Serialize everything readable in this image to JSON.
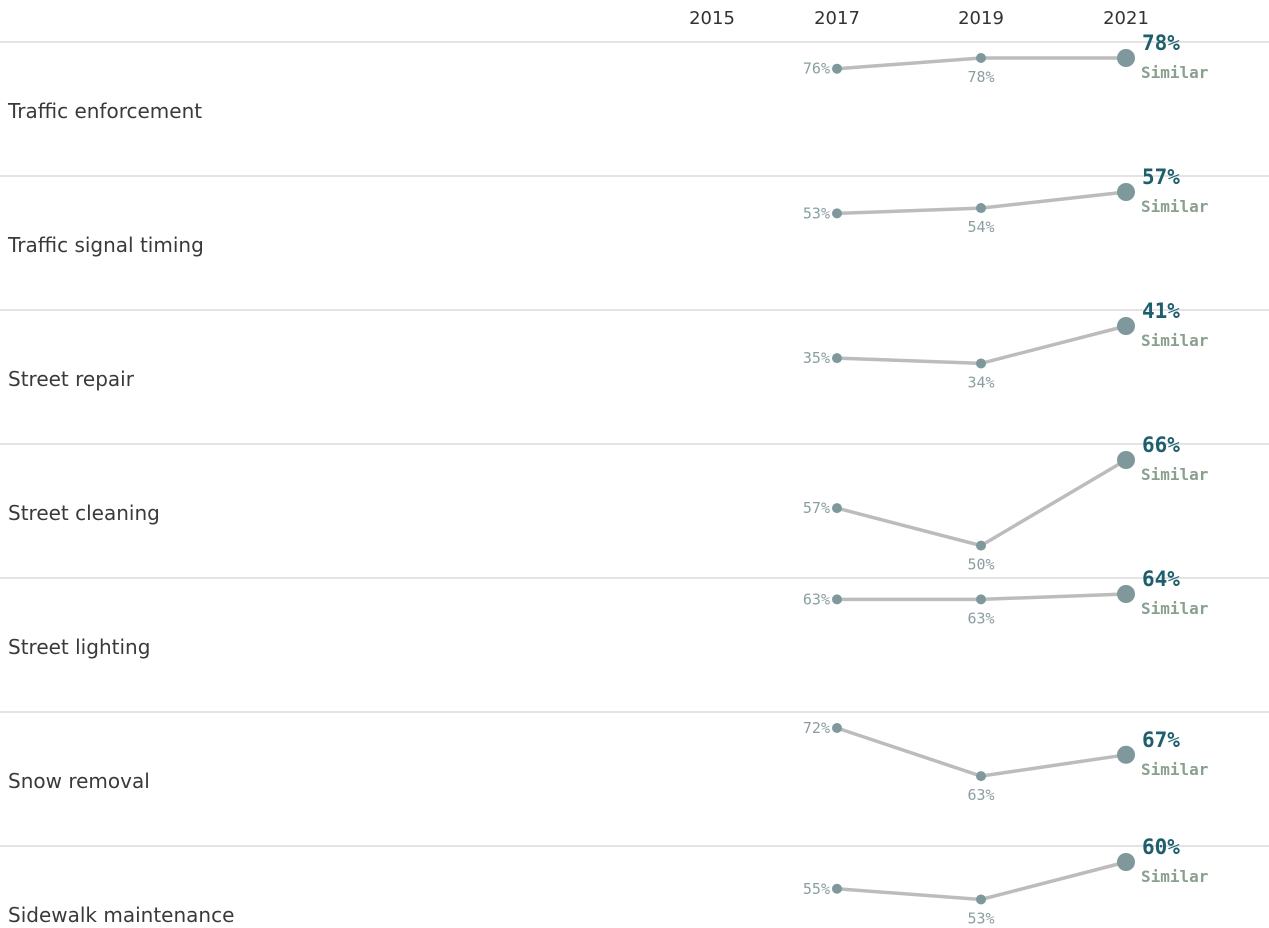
{
  "chart_data": {
    "type": "line",
    "x": [
      "2015",
      "2017",
      "2019",
      "2021"
    ],
    "rows": [
      {
        "label": "Traffic enforcement",
        "values": [
          null,
          76,
          78,
          78
        ],
        "value_labels": [
          "",
          "76%",
          "78%",
          "78%"
        ],
        "trend": "Similar"
      },
      {
        "label": "Traffic signal timing",
        "values": [
          null,
          53,
          54,
          57
        ],
        "value_labels": [
          "",
          "53%",
          "54%",
          "57%"
        ],
        "trend": "Similar"
      },
      {
        "label": "Street repair",
        "values": [
          null,
          35,
          34,
          41
        ],
        "value_labels": [
          "",
          "35%",
          "34%",
          "41%"
        ],
        "trend": "Similar"
      },
      {
        "label": "Street cleaning",
        "values": [
          null,
          57,
          50,
          66
        ],
        "value_labels": [
          "",
          "57%",
          "50%",
          "66%"
        ],
        "trend": "Similar"
      },
      {
        "label": "Street lighting",
        "values": [
          null,
          63,
          63,
          64
        ],
        "value_labels": [
          "",
          "63%",
          "63%",
          "64%"
        ],
        "trend": "Similar"
      },
      {
        "label": "Snow removal",
        "values": [
          null,
          72,
          63,
          67
        ],
        "value_labels": [
          "",
          "72%",
          "63%",
          "67%"
        ],
        "trend": "Similar"
      },
      {
        "label": "Sidewalk maintenance",
        "values": [
          null,
          55,
          53,
          60
        ],
        "value_labels": [
          "",
          "55%",
          "53%",
          "60%"
        ],
        "trend": "Similar"
      }
    ],
    "ylim": [
      0,
      100
    ],
    "grid": false,
    "colors": {
      "line": "#bcbcbc",
      "point": "#7f989c",
      "latest_value": "#1e5f6e",
      "trend": "#8aa08e",
      "divider": "#d4d4d4"
    }
  }
}
